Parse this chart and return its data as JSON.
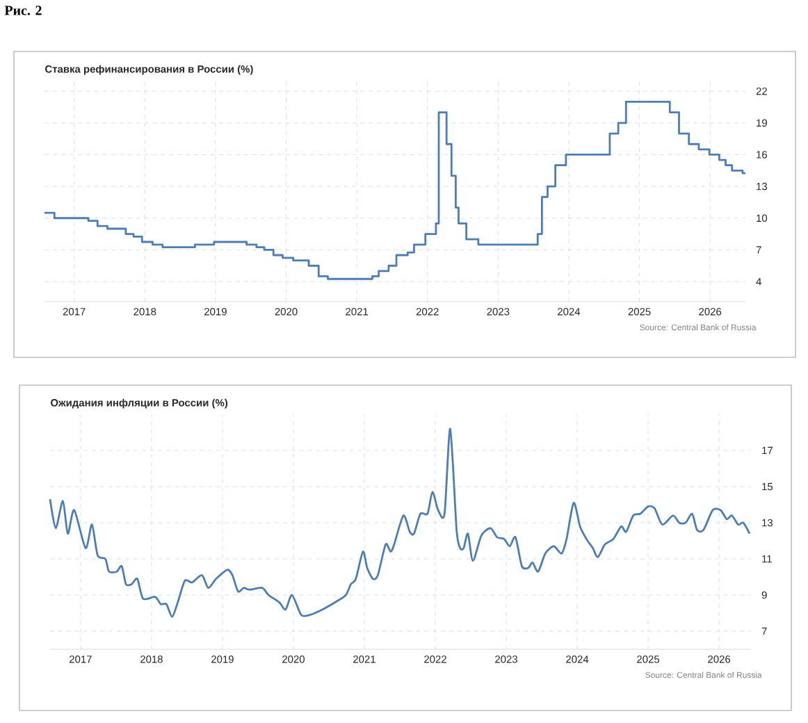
{
  "chart_data": [
    {
      "type": "step",
      "title": "Ставка рефинансирования в России (%)",
      "series": [
        {
          "color": "#4a7ebb",
          "x": [
            2016.58,
            2016.72,
            2017.2,
            2017.33,
            2017.47,
            2017.73,
            2017.84,
            2017.96,
            2018.11,
            2018.25,
            2018.71,
            2018.98,
            2019.44,
            2019.58,
            2019.69,
            2019.82,
            2019.95,
            2020.1,
            2020.32,
            2020.46,
            2020.59,
            2021.22,
            2021.31,
            2021.45,
            2021.56,
            2021.72,
            2021.81,
            2021.97,
            2022.12,
            2022.16,
            2022.27,
            2022.34,
            2022.4,
            2022.44,
            2022.55,
            2022.72,
            2023.56,
            2023.62,
            2023.7,
            2023.81,
            2023.96,
            2024.58,
            2024.7,
            2024.81,
            2025.43,
            2025.56,
            2025.7,
            2025.84,
            2025.99,
            2026.13,
            2026.22,
            2026.31,
            2026.46,
            2026.5
          ],
          "values": [
            10.5,
            10.0,
            9.75,
            9.25,
            9.0,
            8.5,
            8.25,
            7.75,
            7.5,
            7.25,
            7.5,
            7.75,
            7.5,
            7.25,
            7.0,
            6.5,
            6.25,
            6.0,
            5.5,
            4.5,
            4.25,
            4.5,
            5.0,
            5.5,
            6.5,
            6.75,
            7.5,
            8.5,
            9.5,
            20,
            17,
            14,
            11,
            9.5,
            8.0,
            7.5,
            8.5,
            12,
            13,
            15,
            16,
            18,
            19,
            21,
            20,
            18,
            17,
            16.5,
            16,
            15.5,
            15,
            14.5,
            14.25,
            14.25
          ]
        }
      ],
      "xlim": [
        2016.58,
        2026.5
      ],
      "ylim": [
        2.1,
        23
      ],
      "xticks": [
        2017,
        2018,
        2019,
        2020,
        2021,
        2022,
        2023,
        2024,
        2025,
        2026
      ],
      "yticks": [
        4,
        7,
        10,
        13,
        16,
        19,
        22
      ],
      "grid": true,
      "annotations": [
        "Рис. 2",
        "Source: Central Bank of Russia"
      ]
    },
    {
      "type": "line",
      "title": "Ожидания инфляции в России (%)",
      "series": [
        {
          "color": "#4a7ebb",
          "x": [
            2016.57,
            2016.65,
            2016.75,
            2016.82,
            2016.91,
            2017.07,
            2017.16,
            2017.24,
            2017.35,
            2017.4,
            2017.51,
            2017.58,
            2017.64,
            2017.72,
            2017.8,
            2017.88,
            2018.05,
            2018.13,
            2018.21,
            2018.29,
            2018.37,
            2018.47,
            2018.57,
            2018.71,
            2018.8,
            2018.91,
            2019.07,
            2019.14,
            2019.22,
            2019.3,
            2019.38,
            2019.56,
            2019.65,
            2019.8,
            2019.89,
            2019.98,
            2020.11,
            2020.23,
            2020.41,
            2020.63,
            2020.74,
            2020.81,
            2020.88,
            2020.98,
            2021.04,
            2021.12,
            2021.19,
            2021.3,
            2021.37,
            2021.42,
            2021.55,
            2021.64,
            2021.7,
            2021.79,
            2021.89,
            2021.96,
            2022.04,
            2022.13,
            2022.21,
            2022.3,
            2022.35,
            2022.4,
            2022.46,
            2022.53,
            2022.65,
            2022.78,
            2022.87,
            2022.97,
            2023.05,
            2023.13,
            2023.22,
            2023.31,
            2023.37,
            2023.45,
            2023.55,
            2023.67,
            2023.78,
            2023.85,
            2023.95,
            2024.04,
            2024.13,
            2024.22,
            2024.29,
            2024.39,
            2024.51,
            2024.62,
            2024.69,
            2024.79,
            2024.89,
            2025.0,
            2025.09,
            2025.2,
            2025.35,
            2025.44,
            2025.53,
            2025.62,
            2025.69,
            2025.78,
            2025.91,
            2026.02,
            2026.11,
            2026.18,
            2026.27,
            2026.34,
            2026.43
          ],
          "values": [
            14.3,
            12.7,
            14.2,
            12.4,
            13.7,
            11.6,
            12.9,
            11.2,
            11.0,
            10.3,
            10.3,
            10.6,
            9.6,
            9.6,
            9.9,
            8.8,
            8.9,
            8.5,
            8.5,
            7.8,
            8.6,
            9.8,
            9.7,
            10.1,
            9.4,
            9.9,
            10.4,
            10.1,
            9.2,
            9.4,
            9.3,
            9.4,
            9.0,
            8.6,
            8.2,
            9.0,
            7.9,
            7.9,
            8.2,
            8.7,
            9.0,
            9.6,
            9.9,
            11.4,
            10.5,
            9.9,
            10.1,
            11.8,
            11.4,
            11.8,
            13.4,
            12.5,
            12.4,
            13.5,
            13.5,
            14.7,
            13.7,
            13.5,
            18.2,
            12.6,
            11.6,
            11.6,
            12.4,
            10.9,
            12.3,
            12.7,
            12.2,
            12.1,
            11.7,
            12.2,
            10.6,
            10.5,
            10.8,
            10.3,
            11.3,
            11.7,
            11.3,
            12.1,
            14.1,
            12.8,
            12.1,
            11.6,
            11.1,
            11.8,
            12.1,
            12.8,
            12.5,
            13.4,
            13.5,
            13.9,
            13.8,
            12.9,
            13.4,
            13.0,
            13.0,
            13.5,
            12.6,
            12.6,
            13.7,
            13.7,
            13.2,
            13.4,
            12.9,
            13.0,
            12.4
          ]
        }
      ],
      "xlim": [
        2016.57,
        2026.45
      ],
      "ylim": [
        6,
        19
      ],
      "xticks": [
        2017,
        2018,
        2019,
        2020,
        2021,
        2022,
        2023,
        2024,
        2025,
        2026
      ],
      "yticks": [
        7,
        9,
        11,
        13,
        15,
        17
      ],
      "grid": true,
      "annotations": [
        "Source: Central Bank of Russia"
      ]
    }
  ]
}
